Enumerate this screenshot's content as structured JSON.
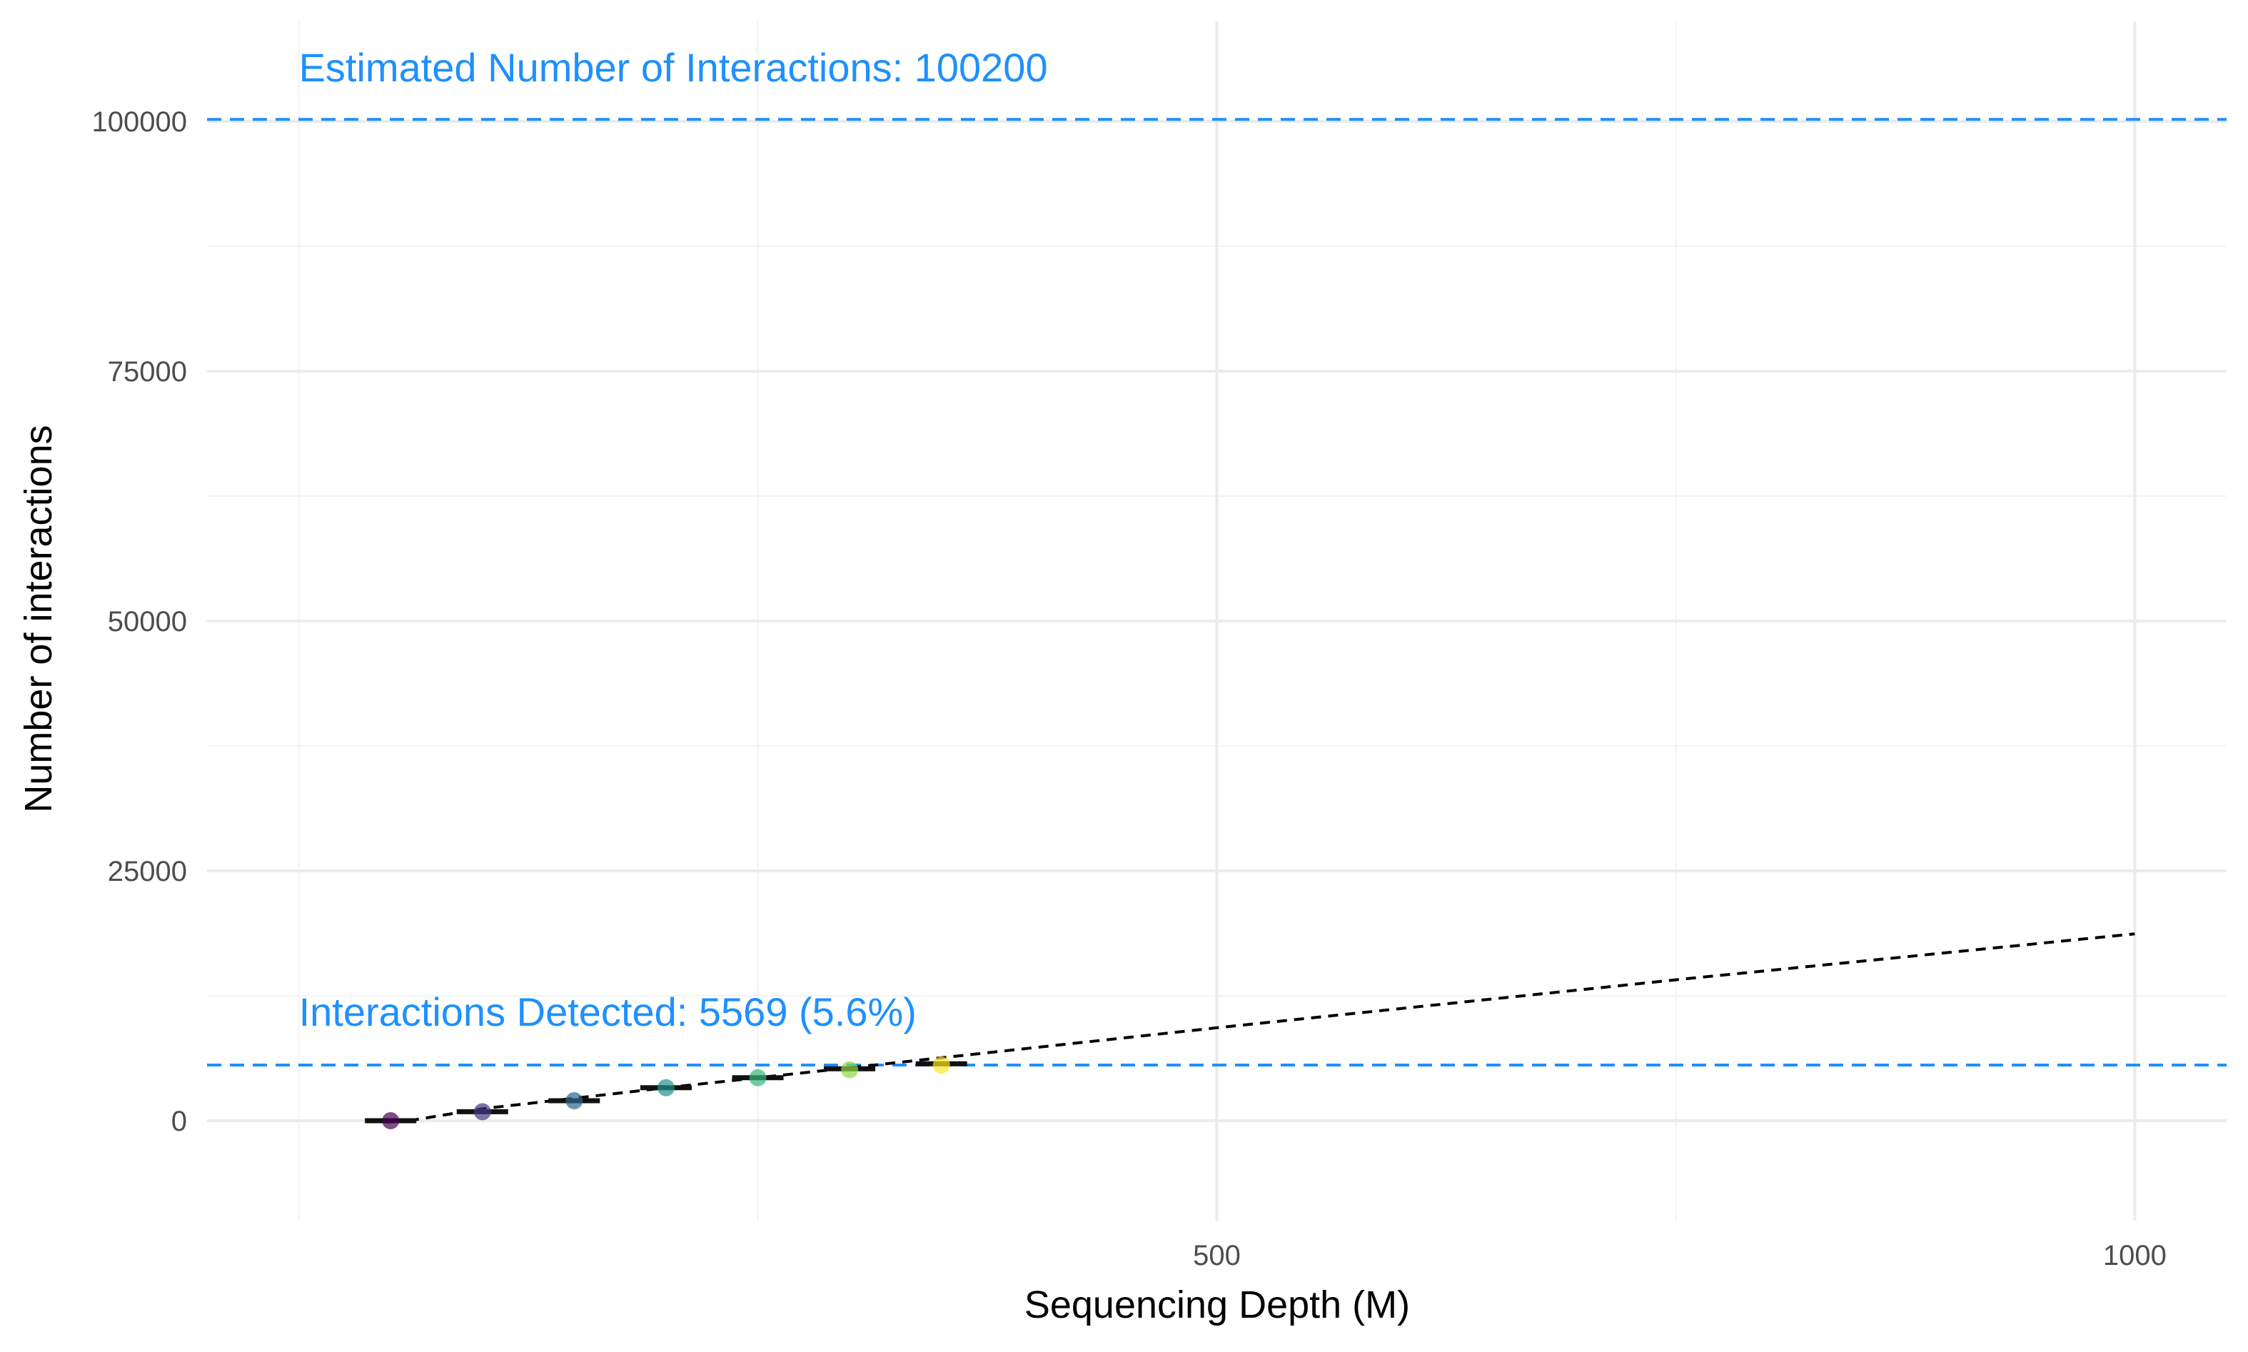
{
  "chart_data": {
    "type": "scatter",
    "title": "",
    "xlabel": "Sequencing Depth (M)",
    "ylabel": "Number of interactions",
    "xlim": [
      -50,
      1050
    ],
    "ylim": [
      -10000,
      110000
    ],
    "x_ticks": [
      {
        "value": 500,
        "label": "500"
      },
      {
        "value": 1000,
        "label": "1000"
      }
    ],
    "x_minor_grid": [
      0,
      250,
      750
    ],
    "y_ticks": [
      {
        "value": 0,
        "label": "0"
      },
      {
        "value": 25000,
        "label": "25000"
      },
      {
        "value": 50000,
        "label": "50000"
      },
      {
        "value": 75000,
        "label": "75000"
      },
      {
        "value": 100000,
        "label": "100000"
      }
    ],
    "y_minor_grid": [
      12500,
      37500,
      62500,
      87500
    ],
    "grid": true,
    "legend": "none",
    "points": [
      {
        "x": 50,
        "y": 0,
        "color": "#440154"
      },
      {
        "x": 100,
        "y": 900,
        "color": "#443983"
      },
      {
        "x": 150,
        "y": 2000,
        "color": "#31688e"
      },
      {
        "x": 200,
        "y": 3300,
        "color": "#21918c"
      },
      {
        "x": 250,
        "y": 4300,
        "color": "#35b779"
      },
      {
        "x": 300,
        "y": 5100,
        "color": "#90d743"
      },
      {
        "x": 350,
        "y": 5569,
        "color": "#fde725"
      }
    ],
    "error_bars": [
      {
        "x": 50,
        "y": 0
      },
      {
        "x": 100,
        "y": 900
      },
      {
        "x": 150,
        "y": 2000
      },
      {
        "x": 200,
        "y": 3300
      },
      {
        "x": 250,
        "y": 4300
      },
      {
        "x": 300,
        "y": 5200
      },
      {
        "x": 350,
        "y": 5700
      }
    ],
    "fit_line": {
      "color": "#000000",
      "dash": "dashed",
      "points": [
        [
          60,
          0
        ],
        [
          100,
          1200
        ],
        [
          200,
          3300
        ],
        [
          300,
          5300
        ],
        [
          350,
          6300
        ],
        [
          500,
          9300
        ],
        [
          750,
          14100
        ],
        [
          1000,
          18700
        ]
      ]
    },
    "hlines": [
      {
        "y": 100200,
        "color": "#1e90ff",
        "dash": "dashed",
        "label": "Estimated Number of Interactions: 100200",
        "label_x": 0,
        "label_y": 104000
      },
      {
        "y": 5569,
        "color": "#1e90ff",
        "dash": "dashed",
        "label": "Interactions Detected: 5569 (5.6%)",
        "label_x": 0,
        "label_y": 9500
      }
    ]
  }
}
